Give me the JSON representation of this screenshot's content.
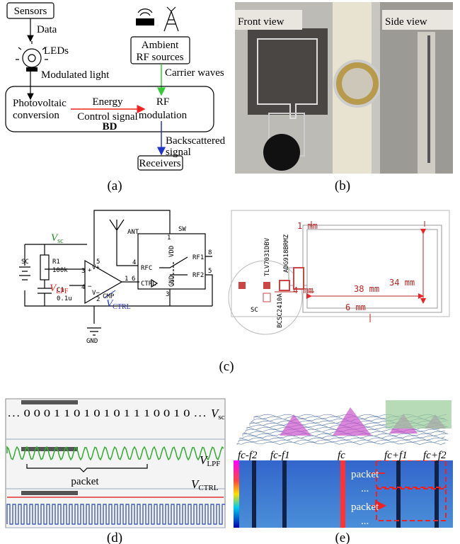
{
  "panel_a": {
    "sensors": "Sensors",
    "data": "Data",
    "leds": "LEDs",
    "modulated_light": "Modulated light",
    "ambient_rf_sources": [
      "Ambient",
      "RF sources"
    ],
    "carrier_waves": "Carrier waves",
    "photovoltaic_conversion": [
      "Photovoltaic",
      "conversion"
    ],
    "energy": "Energy",
    "control_signal": "Control signal",
    "rf_modulation": [
      "RF",
      "modulation"
    ],
    "bd": "BD",
    "backscattered_signal": [
      "Backscattered",
      "signal"
    ],
    "receivers": "Receivers",
    "caption": "(a)"
  },
  "panel_b": {
    "front_view": "Front view",
    "side_view": "Side view",
    "caption": "(b)"
  },
  "panel_c": {
    "sc": "SC",
    "r1": "R1",
    "r1_value": "100k",
    "c1": "C1",
    "c1_value": "0.1u",
    "v_sc": {
      "symbol": "V",
      "subscript": "sc"
    },
    "v_lpf": {
      "symbol": "V",
      "subscript": "LPF"
    },
    "v_ctrl": {
      "symbol": "V",
      "subscript": "CTRL"
    },
    "cmp": "CMP",
    "ant": "ANT",
    "sw": "SW",
    "gnd": "GND",
    "vdd": "VDD",
    "rfc": "RFC",
    "ctrl": "CTRL",
    "rf1": "RF1",
    "rf2": "RF2",
    "sw_gnd": "GND",
    "pins": [
      "3",
      "4",
      "5",
      "2",
      "1",
      "4",
      "1",
      "8",
      "5",
      "6",
      "3"
    ],
    "opamp_plus": "+",
    "opamp_minus": "−",
    "opamp_vplus": "V+",
    "opamp_vminus": "V−",
    "dim_1mm": "1 mm",
    "dim_34mm": "34 mm",
    "dim_38mm": "38 mm",
    "dim_4mm": "4 mm",
    "dim_6mm": "6 mm",
    "ic_cmp": "TLV7031DBV",
    "ic_sw": "ADG918BRMZ",
    "ic_sc": "BCSC2410A",
    "pcb_sc": "SC",
    "caption": "(c)"
  },
  "panel_d": {
    "bits": "… 0 0 0 1 1 0 1 0 1 0 1 1 1 0 0 1 0 …",
    "v_sc": {
      "symbol": "V",
      "subscript": "sc"
    },
    "packet": "packet",
    "v_lpf": {
      "symbol": "V",
      "subscript": "LPF"
    },
    "v_ctrl": {
      "symbol": "V",
      "subscript": "CTRL"
    },
    "caption": "(d)"
  },
  "panel_e": {
    "freq_labels": [
      "fc-f2",
      "fc-f1",
      "fc",
      "fc+f1",
      "fc+f2"
    ],
    "packet_1": "packet",
    "dots_1": "...",
    "packet_2": "packet",
    "dots_2": "...",
    "caption": "(e)"
  }
}
